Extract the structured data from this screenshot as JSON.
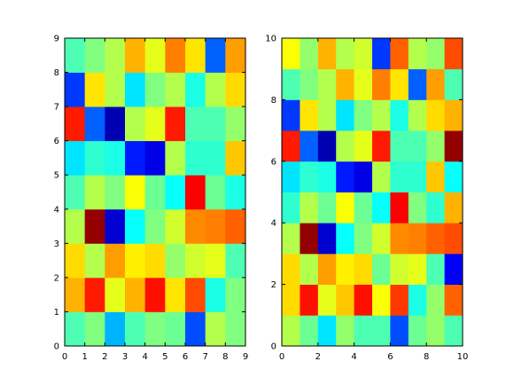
{
  "chart_data": [
    {
      "type": "heatmap",
      "colormap": "jet",
      "vmin": 0,
      "vmax": 1,
      "xlim": [
        0,
        9
      ],
      "ylim": [
        0,
        9
      ],
      "xticks": [
        "0",
        "1",
        "2",
        "3",
        "4",
        "5",
        "6",
        "7",
        "8",
        "9"
      ],
      "yticks": [
        "0",
        "1",
        "2",
        "3",
        "4",
        "5",
        "6",
        "7",
        "8",
        "9"
      ],
      "values": [
        [
          0.45,
          0.5,
          0.3,
          0.45,
          0.5,
          0.48,
          0.2,
          0.55,
          0.5
        ],
        [
          0.7,
          0.85,
          0.6,
          0.7,
          0.86,
          0.65,
          0.8,
          0.4,
          0.5
        ],
        [
          0.66,
          0.55,
          0.72,
          0.64,
          0.66,
          0.52,
          0.58,
          0.6,
          0.45
        ],
        [
          0.55,
          0.98,
          0.08,
          0.38,
          0.5,
          0.58,
          0.74,
          0.75,
          0.78
        ],
        [
          0.45,
          0.55,
          0.5,
          0.62,
          0.48,
          0.38,
          0.88,
          0.48,
          0.4
        ],
        [
          0.35,
          0.42,
          0.4,
          0.15,
          0.1,
          0.55,
          0.42,
          0.42,
          0.68
        ],
        [
          0.85,
          0.22,
          0.05,
          0.55,
          0.6,
          0.85,
          0.45,
          0.45,
          0.52
        ],
        [
          0.18,
          0.65,
          0.55,
          0.35,
          0.5,
          0.55,
          0.4,
          0.55,
          0.66
        ],
        [
          0.45,
          0.5,
          0.55,
          0.7,
          0.6,
          0.75,
          0.65,
          0.22,
          0.72
        ]
      ]
    },
    {
      "type": "heatmap",
      "colormap": "jet",
      "vmin": 0,
      "vmax": 1,
      "xlim": [
        0,
        10
      ],
      "ylim": [
        0,
        10
      ],
      "xticks": [
        "0",
        "2",
        "4",
        "6",
        "8",
        "10"
      ],
      "yticks": [
        "0",
        "2",
        "4",
        "6",
        "8",
        "10"
      ],
      "values": [
        [
          0.55,
          0.48,
          0.35,
          0.52,
          0.45,
          0.45,
          0.2,
          0.48,
          0.52,
          0.45
        ],
        [
          0.66,
          0.86,
          0.6,
          0.68,
          0.86,
          0.62,
          0.82,
          0.4,
          0.52,
          0.78
        ],
        [
          0.66,
          0.55,
          0.72,
          0.64,
          0.66,
          0.48,
          0.58,
          0.6,
          0.45,
          0.12
        ],
        [
          0.55,
          0.98,
          0.08,
          0.38,
          0.5,
          0.58,
          0.74,
          0.75,
          0.78,
          0.8
        ],
        [
          0.42,
          0.55,
          0.48,
          0.62,
          0.48,
          0.38,
          0.88,
          0.5,
          0.42,
          0.7
        ],
        [
          0.35,
          0.42,
          0.4,
          0.15,
          0.1,
          0.55,
          0.42,
          0.42,
          0.68,
          0.38
        ],
        [
          0.85,
          0.22,
          0.05,
          0.55,
          0.6,
          0.85,
          0.45,
          0.45,
          0.52,
          0.98
        ],
        [
          0.18,
          0.65,
          0.55,
          0.35,
          0.5,
          0.55,
          0.4,
          0.55,
          0.66,
          0.7
        ],
        [
          0.45,
          0.5,
          0.55,
          0.7,
          0.6,
          0.75,
          0.65,
          0.22,
          0.72,
          0.45
        ],
        [
          0.62,
          0.52,
          0.7,
          0.55,
          0.58,
          0.18,
          0.78,
          0.55,
          0.52,
          0.8
        ]
      ]
    }
  ]
}
